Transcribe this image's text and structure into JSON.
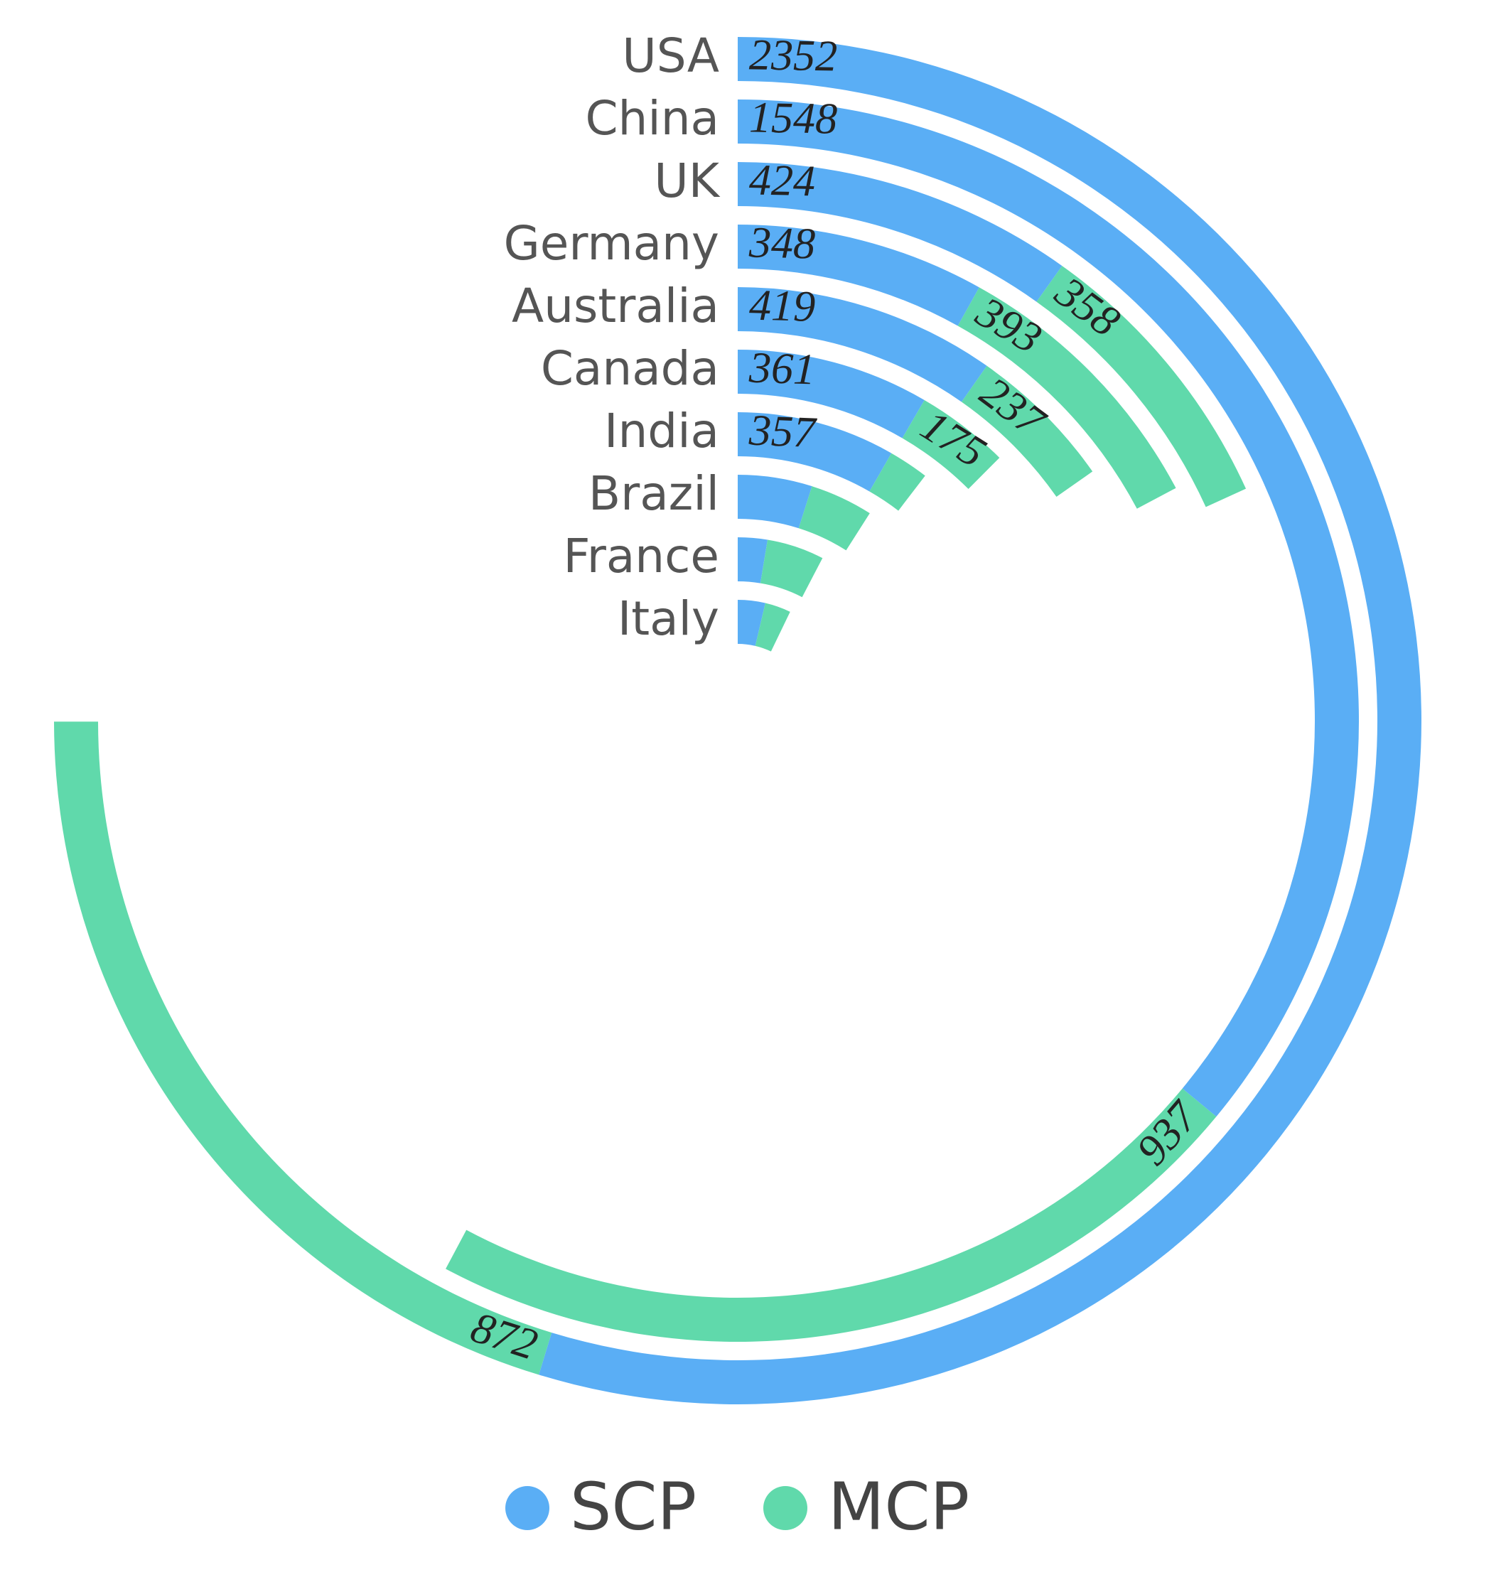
{
  "chart_data": {
    "type": "radial-stacked-bar",
    "categories": [
      "USA",
      "China",
      "UK",
      "Germany",
      "Australia",
      "Canada",
      "India",
      "Brazil",
      "France",
      "Italy"
    ],
    "series": [
      {
        "name": "SCP",
        "color": "#5aaef5",
        "values": [
          2352,
          1548,
          424,
          348,
          419,
          361,
          357,
          210,
          112,
          158
        ]
      },
      {
        "name": "MCP",
        "color": "#60d9ab",
        "values": [
          872,
          937,
          358,
          393,
          237,
          175,
          90,
          178,
          217,
          149
        ]
      }
    ],
    "xlim": [
      0,
      4300
    ],
    "legend": "bottom"
  }
}
